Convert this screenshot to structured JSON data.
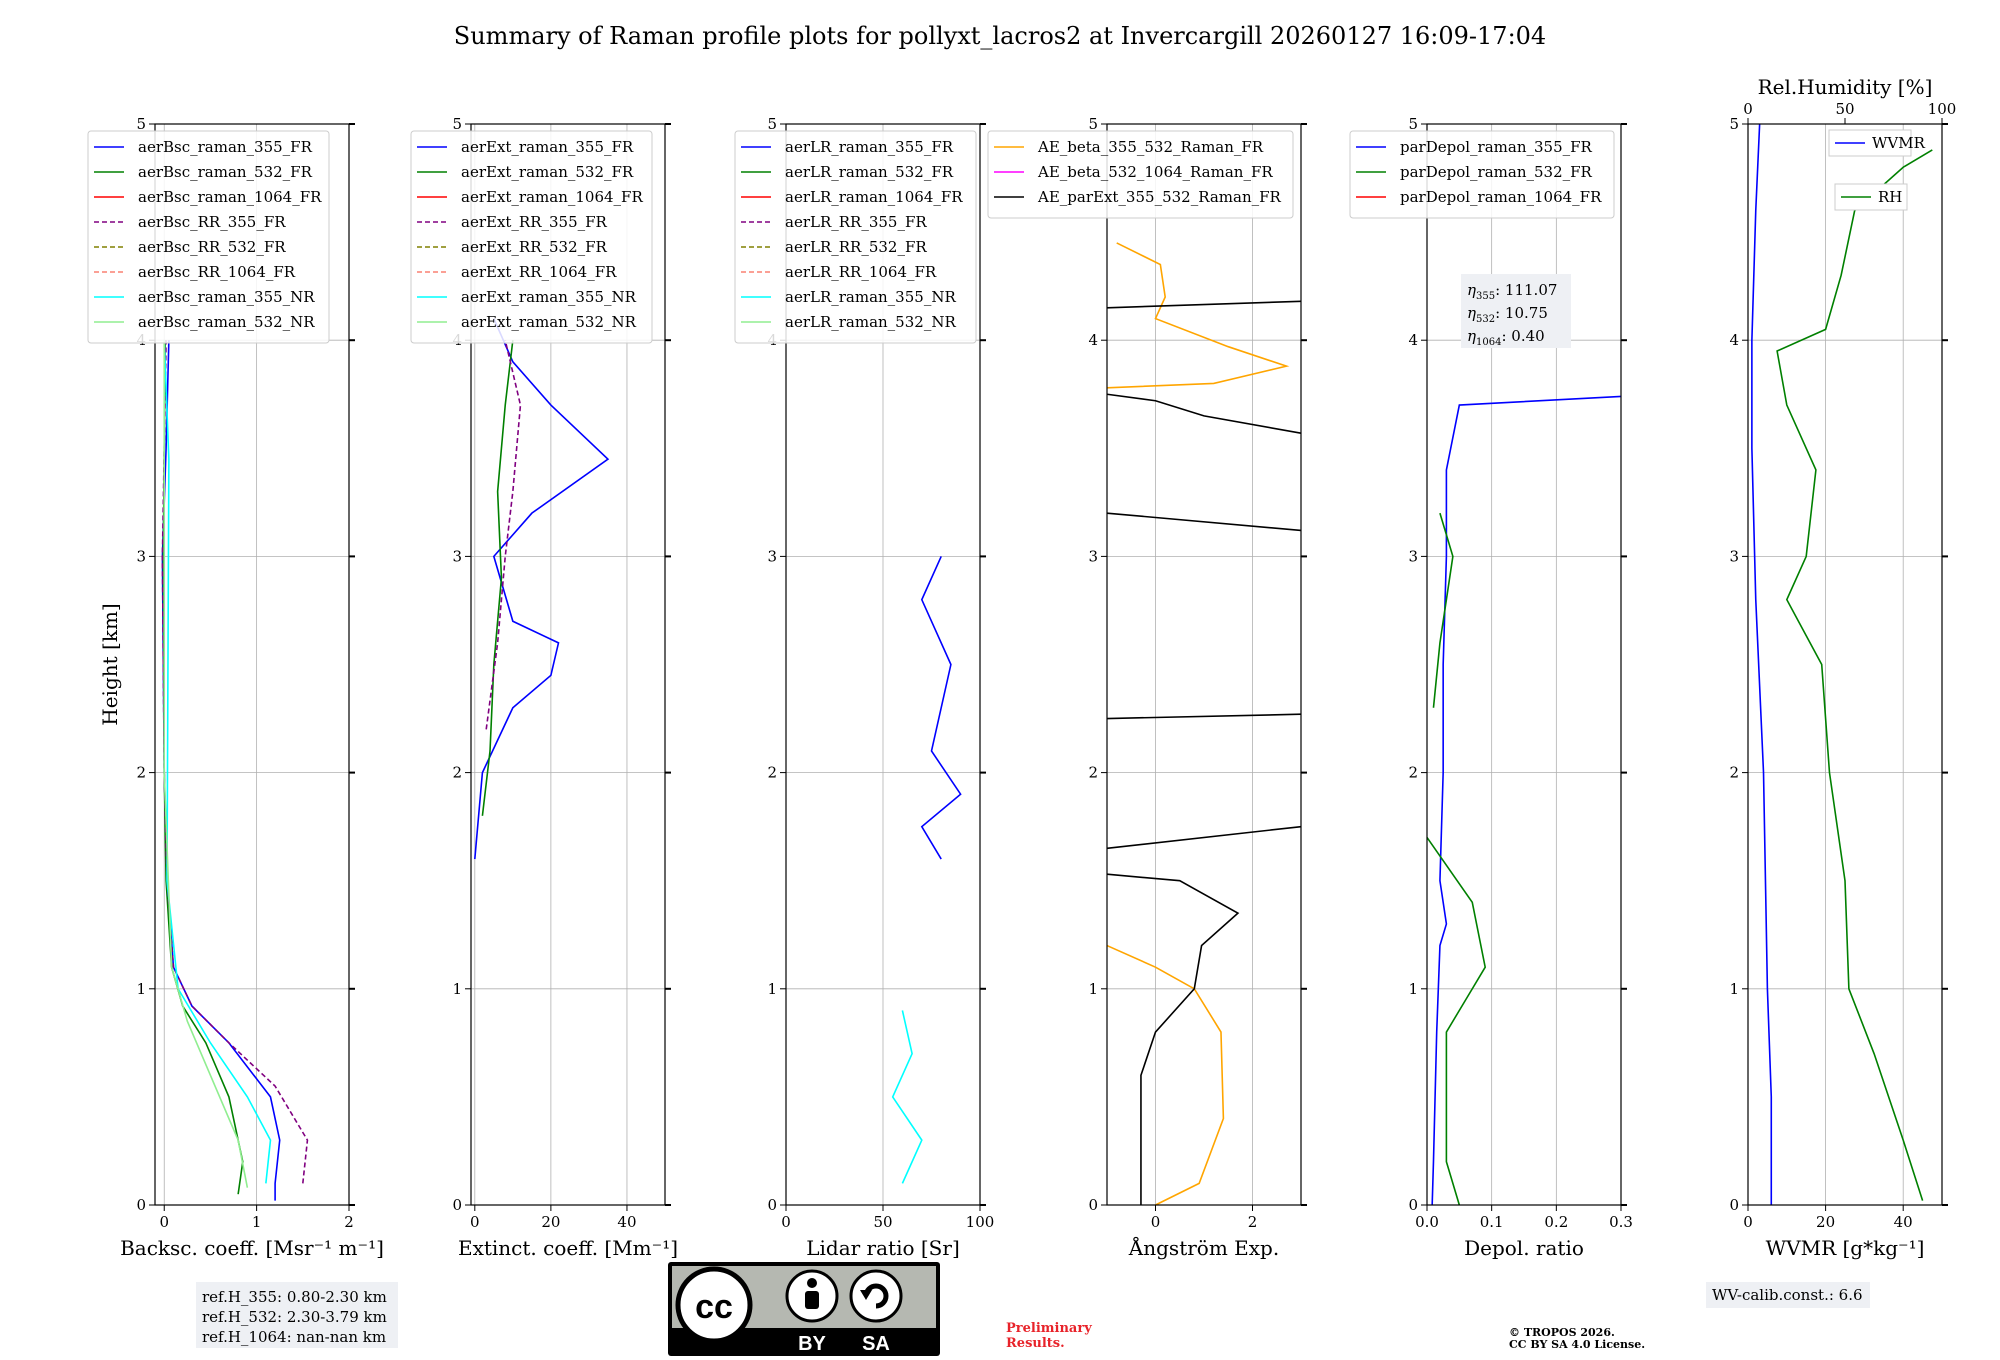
{
  "title": "Summary of Raman profile plots for pollyxt_lacros2 at Invercargill 20260127 16:09-17:04",
  "colors": {
    "blue": "#0000ff",
    "green": "#008000",
    "red": "#ff0000",
    "purple": "#800080",
    "olive": "#808000",
    "salmon": "#fa8072",
    "cyan": "#00ffff",
    "lightgreen": "#90ee90",
    "orange": "#ffa500",
    "magenta": "#ff00ff",
    "black": "#000000"
  },
  "chart_data": [
    {
      "type": "line",
      "panel": "backscatter",
      "xlabel": "Backsc. coeff. [Msr⁻¹ m⁻¹]",
      "ylabel": "Height [km]",
      "xlim": [
        -0.1,
        2
      ],
      "ylim": [
        0,
        5
      ],
      "xticks": [
        0,
        1,
        2
      ],
      "yticks": [
        0,
        1,
        2,
        3,
        4,
        5
      ],
      "legend": [
        "aerBsc_raman_355_FR",
        "aerBsc_raman_532_FR",
        "aerBsc_raman_1064_FR",
        "aerBsc_RR_355_FR",
        "aerBsc_RR_532_FR",
        "aerBsc_RR_1064_FR",
        "aerBsc_raman_355_NR",
        "aerBsc_raman_532_NR"
      ],
      "series": [
        {
          "name": "aerBsc_raman_355_FR",
          "color": "blue",
          "dash": false,
          "points": [
            [
              1.2,
              0.02
            ],
            [
              1.2,
              0.1
            ],
            [
              1.25,
              0.3
            ],
            [
              1.15,
              0.5
            ],
            [
              0.7,
              0.75
            ],
            [
              0.3,
              0.92
            ],
            [
              0.1,
              1.1
            ],
            [
              0.03,
              1.5
            ],
            [
              0.0,
              2
            ],
            [
              -0.02,
              3
            ],
            [
              0.02,
              3.5
            ],
            [
              0.05,
              4
            ]
          ]
        },
        {
          "name": "aerBsc_raman_532_FR",
          "color": "green",
          "dash": false,
          "points": [
            [
              0.8,
              0.05
            ],
            [
              0.85,
              0.2
            ],
            [
              0.7,
              0.5
            ],
            [
              0.45,
              0.75
            ],
            [
              0.2,
              0.92
            ],
            [
              0.08,
              1.1
            ],
            [
              0.02,
              1.5
            ],
            [
              0.0,
              2
            ],
            [
              -0.01,
              3
            ],
            [
              0.01,
              4
            ]
          ]
        },
        {
          "name": "aerBsc_RR_355_FR",
          "color": "purple",
          "dash": true,
          "points": [
            [
              1.5,
              0.1
            ],
            [
              1.55,
              0.3
            ],
            [
              1.2,
              0.55
            ],
            [
              0.7,
              0.75
            ],
            [
              0.3,
              0.92
            ],
            [
              0.1,
              1.1
            ],
            [
              0.03,
              1.5
            ],
            [
              0.0,
              2
            ],
            [
              -0.02,
              3
            ],
            [
              0.02,
              4
            ]
          ]
        },
        {
          "name": "aerBsc_raman_355_NR",
          "color": "cyan",
          "dash": false,
          "points": [
            [
              1.1,
              0.1
            ],
            [
              1.15,
              0.3
            ],
            [
              0.9,
              0.5
            ],
            [
              0.5,
              0.75
            ],
            [
              0.15,
              1.0
            ],
            [
              0.03,
              1.5
            ],
            [
              0.05,
              3.45
            ],
            [
              0.0,
              4
            ]
          ]
        },
        {
          "name": "aerBsc_raman_532_NR",
          "color": "lightgreen",
          "dash": false,
          "points": [
            [
              0.9,
              0.08
            ],
            [
              0.8,
              0.3
            ],
            [
              0.5,
              0.6
            ],
            [
              0.25,
              0.85
            ],
            [
              0.08,
              1.1
            ],
            [
              0.0,
              2
            ],
            [
              0.0,
              4
            ]
          ]
        }
      ]
    },
    {
      "type": "line",
      "panel": "extinction",
      "xlabel": "Extinct. coeff. [Mm⁻¹]",
      "xlim": [
        -1,
        50
      ],
      "ylim": [
        0,
        5
      ],
      "xticks": [
        0,
        20,
        40
      ],
      "yticks": [
        0,
        1,
        2,
        3,
        4,
        5
      ],
      "legend": [
        "aerExt_raman_355_FR",
        "aerExt_raman_532_FR",
        "aerExt_raman_1064_FR",
        "aerExt_RR_355_FR",
        "aerExt_RR_532_FR",
        "aerExt_RR_1064_FR",
        "aerExt_raman_355_NR",
        "aerExt_raman_532_NR"
      ],
      "series": [
        {
          "name": "aerExt_raman_355_FR",
          "color": "blue",
          "dash": false,
          "points": [
            [
              0,
              1.6
            ],
            [
              2,
              2.0
            ],
            [
              10,
              2.3
            ],
            [
              20,
              2.45
            ],
            [
              22,
              2.6
            ],
            [
              10,
              2.7
            ],
            [
              5,
              3.0
            ],
            [
              15,
              3.2
            ],
            [
              35,
              3.45
            ],
            [
              20,
              3.7
            ],
            [
              10,
              3.9
            ],
            [
              5,
              4.1
            ]
          ]
        },
        {
          "name": "aerExt_raman_532_FR",
          "color": "green",
          "dash": false,
          "points": [
            [
              2,
              1.8
            ],
            [
              4,
              2.1
            ],
            [
              5,
              2.5
            ],
            [
              7,
              2.9
            ],
            [
              6,
              3.3
            ],
            [
              8,
              3.7
            ],
            [
              10,
              4.0
            ]
          ]
        },
        {
          "name": "aerExt_RR_355_FR",
          "color": "purple",
          "dash": true,
          "points": [
            [
              3,
              2.2
            ],
            [
              6,
              2.6
            ],
            [
              8,
              3.0
            ],
            [
              10,
              3.3
            ],
            [
              12,
              3.7
            ],
            [
              8,
              4.0
            ]
          ]
        }
      ]
    },
    {
      "type": "line",
      "panel": "lidar_ratio",
      "xlabel": "Lidar ratio [Sr]",
      "xlim": [
        0,
        100
      ],
      "ylim": [
        0,
        5
      ],
      "xticks": [
        0,
        50,
        100
      ],
      "yticks": [
        0,
        1,
        2,
        3,
        4,
        5
      ],
      "legend": [
        "aerLR_raman_355_FR",
        "aerLR_raman_532_FR",
        "aerLR_raman_1064_FR",
        "aerLR_RR_355_FR",
        "aerLR_RR_532_FR",
        "aerLR_RR_1064_FR",
        "aerLR_raman_355_NR",
        "aerLR_raman_532_NR"
      ],
      "series": [
        {
          "name": "aerLR_raman_355_NR",
          "color": "cyan",
          "dash": false,
          "points": [
            [
              60,
              0.1
            ],
            [
              70,
              0.3
            ],
            [
              55,
              0.5
            ],
            [
              65,
              0.7
            ],
            [
              60,
              0.9
            ]
          ]
        },
        {
          "name": "aerLR_raman_355_FR",
          "color": "blue",
          "dash": false,
          "points": [
            [
              80,
              1.6
            ],
            [
              70,
              1.75
            ],
            [
              90,
              1.9
            ],
            [
              75,
              2.1
            ],
            [
              85,
              2.5
            ],
            [
              70,
              2.8
            ],
            [
              80,
              3.0
            ]
          ]
        }
      ]
    },
    {
      "type": "line",
      "panel": "angstrom",
      "xlabel": "Ångström Exp.",
      "xlim": [
        -1,
        3
      ],
      "ylim": [
        0,
        5
      ],
      "xticks": [
        0,
        2
      ],
      "yticks": [
        0,
        1,
        2,
        3,
        4,
        5
      ],
      "legend": [
        "AE_beta_355_532_Raman_FR",
        "AE_beta_532_1064_Raman_FR",
        "AE_parExt_355_532_Raman_FR"
      ],
      "series": [
        {
          "name": "AE_beta_355_532_Raman_FR",
          "color": "orange",
          "dash": false,
          "points": [
            [
              0,
              0
            ],
            [
              0.9,
              0.1
            ],
            [
              1.4,
              0.4
            ],
            [
              1.35,
              0.8
            ],
            [
              0.8,
              1.0
            ],
            [
              0,
              1.1
            ],
            [
              -1,
              1.2
            ]
          ]
        },
        {
          "name": "AE_beta_355_532_Raman_FR_upper",
          "color": "orange",
          "dash": false,
          "points": [
            [
              -1,
              3.78
            ],
            [
              1.2,
              3.8
            ],
            [
              2.7,
              3.88
            ],
            [
              1.5,
              3.97
            ],
            [
              0,
              4.1
            ],
            [
              0.2,
              4.2
            ],
            [
              0.1,
              4.35
            ],
            [
              -0.8,
              4.45
            ]
          ]
        },
        {
          "name": "AE_parExt_355_532_Raman_FR",
          "color": "black",
          "dash": false,
          "points": [
            [
              -0.3,
              0
            ],
            [
              -0.3,
              0.6
            ],
            [
              0,
              0.8
            ],
            [
              0.8,
              1.0
            ],
            [
              0.95,
              1.2
            ],
            [
              1.7,
              1.35
            ],
            [
              0.5,
              1.5
            ],
            [
              -1,
              1.53
            ]
          ]
        },
        {
          "name": "AE_parExt_355_532_Raman_FR_b",
          "color": "black",
          "dash": false,
          "points": [
            [
              -1,
              1.65
            ],
            [
              3,
              1.75
            ]
          ]
        },
        {
          "name": "AE_parExt_355_532_Raman_FR_c",
          "color": "black",
          "dash": false,
          "points": [
            [
              -1,
              2.25
            ],
            [
              3,
              2.27
            ]
          ]
        },
        {
          "name": "AE_parExt_355_532_Raman_FR_d",
          "color": "black",
          "dash": false,
          "points": [
            [
              -1,
              3.2
            ],
            [
              3,
              3.12
            ]
          ]
        },
        {
          "name": "AE_parExt_355_532_Raman_FR_e",
          "color": "black",
          "dash": false,
          "points": [
            [
              -1,
              3.75
            ],
            [
              0,
              3.72
            ],
            [
              1,
              3.65
            ],
            [
              3,
              3.57
            ]
          ]
        },
        {
          "name": "AE_parExt_355_532_Raman_FR_f",
          "color": "black",
          "dash": false,
          "points": [
            [
              -1,
              4.15
            ],
            [
              3,
              4.18
            ]
          ]
        }
      ]
    },
    {
      "type": "line",
      "panel": "depolarization",
      "xlabel": "Depol. ratio",
      "xlim": [
        0,
        0.3
      ],
      "ylim": [
        0,
        5
      ],
      "xticks": [
        0.0,
        0.1,
        0.2,
        0.3
      ],
      "yticks": [
        0,
        1,
        2,
        3,
        4,
        5
      ],
      "legend": [
        "parDepol_raman_355_FR",
        "parDepol_raman_532_FR",
        "parDepol_raman_1064_FR"
      ],
      "series": [
        {
          "name": "parDepol_raman_355_FR",
          "color": "blue",
          "dash": false,
          "points": [
            [
              0.008,
              0
            ],
            [
              0.01,
              0.2
            ],
            [
              0.015,
              0.8
            ],
            [
              0.02,
              1.2
            ],
            [
              0.03,
              1.3
            ],
            [
              0.02,
              1.5
            ],
            [
              0.025,
              2.0
            ],
            [
              0.025,
              2.5
            ],
            [
              0.03,
              3.0
            ],
            [
              0.03,
              3.4
            ],
            [
              0.05,
              3.7
            ],
            [
              0.3,
              3.74
            ]
          ]
        },
        {
          "name": "parDepol_raman_532_FR",
          "color": "green",
          "dash": false,
          "points": [
            [
              0.05,
              0
            ],
            [
              0.03,
              0.2
            ],
            [
              0.03,
              0.8
            ],
            [
              0.06,
              0.95
            ],
            [
              0.09,
              1.1
            ],
            [
              0.07,
              1.4
            ],
            [
              0.0,
              1.7
            ]
          ]
        },
        {
          "name": "parDepol_raman_532_FR_upper",
          "color": "green",
          "dash": false,
          "points": [
            [
              0.01,
              2.3
            ],
            [
              0.02,
              2.6
            ],
            [
              0.04,
              3.0
            ],
            [
              0.02,
              3.2
            ]
          ]
        }
      ],
      "annotation": [
        {
          "label": "η",
          "sub": "355",
          "value": "111.07"
        },
        {
          "label": "η",
          "sub": "532",
          "value": "10.75"
        },
        {
          "label": "η",
          "sub": "1064",
          "value": "0.40"
        }
      ]
    },
    {
      "type": "line",
      "panel": "water_vapor",
      "xlabel": "WVMR [g*kg⁻¹]",
      "x2label": "Rel.Humidity [%]",
      "xlim": [
        0,
        50
      ],
      "x2lim": [
        0,
        100
      ],
      "ylim": [
        0,
        5
      ],
      "xticks": [
        0,
        20,
        40
      ],
      "x2ticks": [
        0,
        50,
        100
      ],
      "yticks": [
        0,
        1,
        2,
        3,
        4,
        5
      ],
      "legend": [
        "WVMR",
        "RH"
      ],
      "series": [
        {
          "name": "WVMR",
          "color": "blue",
          "dash": false,
          "points": [
            [
              6,
              0
            ],
            [
              6,
              0.5
            ],
            [
              5,
              1.0
            ],
            [
              4,
              2.0
            ],
            [
              2,
              2.8
            ],
            [
              1,
              3.5
            ],
            [
              1,
              4.0
            ],
            [
              2,
              4.6
            ],
            [
              3,
              5.0
            ]
          ]
        },
        {
          "name": "RH",
          "color": "green",
          "dash": false,
          "rh_axis": true,
          "points": [
            [
              90,
              0.02
            ],
            [
              80,
              0.3
            ],
            [
              65,
              0.7
            ],
            [
              52,
              1.0
            ],
            [
              50,
              1.5
            ],
            [
              42,
              2.0
            ],
            [
              38,
              2.5
            ],
            [
              20,
              2.8
            ],
            [
              30,
              3.0
            ],
            [
              35,
              3.4
            ],
            [
              20,
              3.7
            ],
            [
              15,
              3.95
            ],
            [
              40,
              4.05
            ],
            [
              48,
              4.3
            ],
            [
              55,
              4.6
            ],
            [
              80,
              4.8
            ],
            [
              95,
              4.88
            ]
          ]
        }
      ]
    }
  ],
  "text_boxes": {
    "ref_h": [
      "ref.H_355: 0.80-2.30 km",
      "ref.H_532: 2.30-3.79 km",
      "ref.H_1064: nan-nan km"
    ],
    "wv_calib": "WV-calib.const.: 6.6",
    "preliminary": [
      "Preliminary",
      "Results."
    ],
    "copyright": [
      "© TROPOS 2026.",
      "CC BY SA 4.0 License."
    ],
    "license_logo": {
      "cc": "cc",
      "by": "BY",
      "sa": "SA"
    }
  }
}
